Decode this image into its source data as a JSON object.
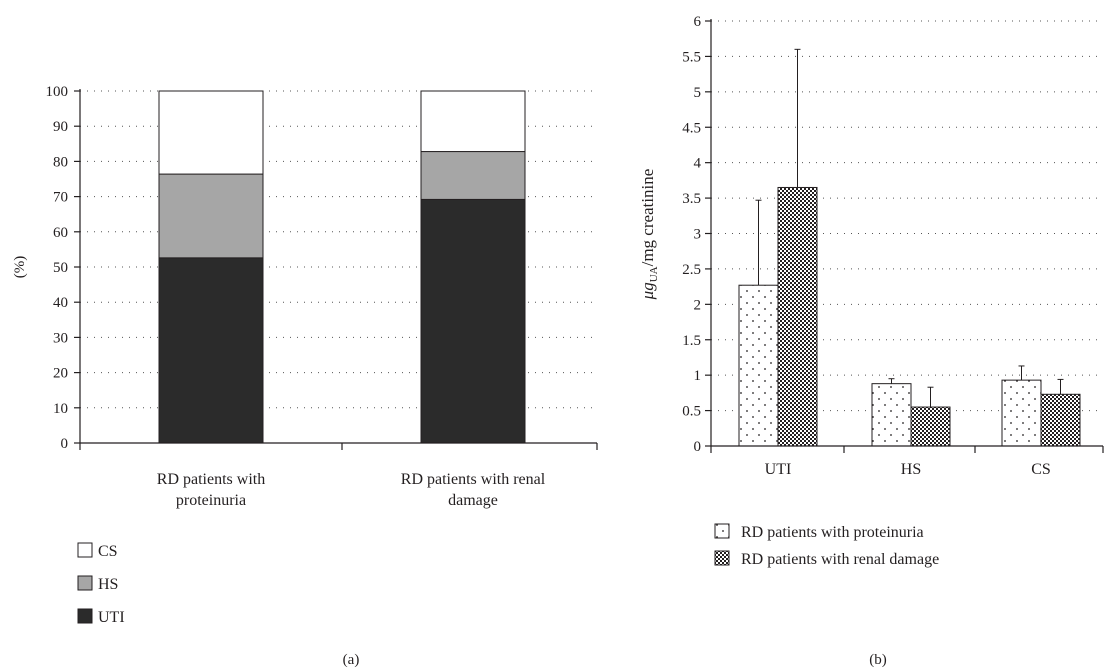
{
  "colors": {
    "uti": "#2b2b2b",
    "hs": "#a6a6a6",
    "cs": "#ffffff",
    "ink": "#231f20"
  },
  "chart_data": [
    {
      "panel_label": "(a)",
      "type": "bar",
      "stacked": true,
      "ylabel": "(%)",
      "ylim": [
        0,
        100
      ],
      "yticks": [
        "0",
        "10",
        "20",
        "30",
        "40",
        "50",
        "60",
        "70",
        "80",
        "90",
        "100"
      ],
      "categories": [
        {
          "name": "RD patients with proteinuria",
          "lines": [
            "RD patients with",
            "proteinuria"
          ]
        },
        {
          "name": "RD patients with renal damage",
          "lines": [
            "RD patients with renal",
            "damage"
          ]
        }
      ],
      "series": [
        {
          "name": "UTI",
          "values": [
            52.6,
            69.2
          ],
          "color": "#2b2b2b"
        },
        {
          "name": "HS",
          "values": [
            23.8,
            13.6
          ],
          "color": "#a6a6a6"
        },
        {
          "name": "CS",
          "values": [
            23.6,
            17.2
          ],
          "color": "#ffffff"
        }
      ],
      "legend": [
        "CS",
        "HS",
        "UTI"
      ],
      "grid": true,
      "legend_position": "bottom-left"
    },
    {
      "panel_label": "(b)",
      "type": "bar",
      "ylabel_prefix": "μg",
      "ylabel_sub": "UA",
      "ylabel_suffix": "/mg creatinine",
      "ylim": [
        0,
        6
      ],
      "yticks": [
        "0",
        "0.5",
        "1",
        "1.5",
        "2",
        "2.5",
        "3",
        "3.5",
        "4",
        "4.5",
        "5",
        "5.5",
        "6"
      ],
      "categories": [
        "UTI",
        "HS",
        "CS"
      ],
      "series": [
        {
          "name": "RD patients with proteinuria",
          "values": [
            2.27,
            0.88,
            0.93
          ],
          "errors": [
            1.2,
            0.07,
            0.2
          ],
          "pattern": "dots"
        },
        {
          "name": "RD patients with renal damage",
          "values": [
            3.65,
            0.55,
            0.73
          ],
          "errors": [
            1.95,
            0.28,
            0.21
          ],
          "pattern": "cross"
        }
      ],
      "grid": true,
      "legend_position": "bottom-left"
    }
  ]
}
